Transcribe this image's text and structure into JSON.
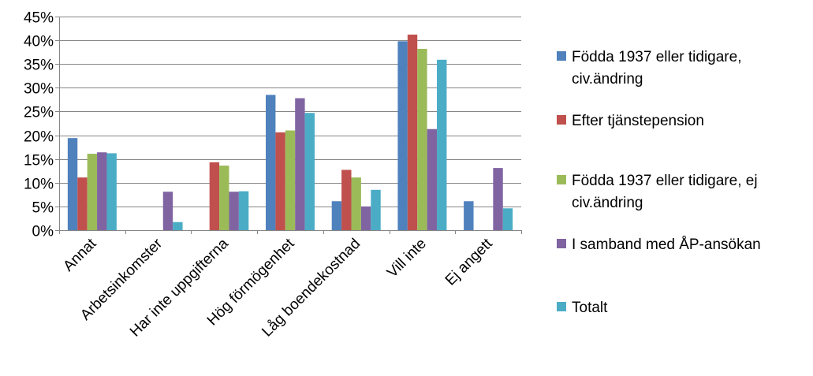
{
  "chart_data": {
    "type": "bar",
    "title": "",
    "xlabel": "",
    "ylabel": "",
    "ylim": [
      0,
      45
    ],
    "ytick_step": 5,
    "ytick_labels": [
      "0%",
      "5%",
      "10%",
      "15%",
      "20%",
      "25%",
      "30%",
      "35%",
      "40%",
      "45%"
    ],
    "grid": "horizontal",
    "legend_position": "right",
    "categories": [
      "Annat",
      "Arbetsinkomster",
      "Har inte uppgifterna",
      "Hög förmögenhet",
      "Låg boendekostnad",
      "Vill inte",
      "Ej angett"
    ],
    "series": [
      {
        "name": "Födda 1937 eller tidigare, civ.ändring",
        "legend_lines": [
          "Födda 1937 eller tidigare,",
          "civ.ändring"
        ],
        "color": "#4F81BD",
        "values": [
          19.4,
          0,
          0,
          28.5,
          6.1,
          39.8,
          6.1
        ]
      },
      {
        "name": "Efter tjänstepension",
        "legend_lines": [
          "Efter tjänstepension"
        ],
        "color": "#C0504D",
        "values": [
          11.1,
          0,
          14.3,
          20.6,
          12.7,
          41.2,
          0
        ]
      },
      {
        "name": "Födda 1937 eller tidigare, ej civ.ändring",
        "legend_lines": [
          "Födda 1937 eller tidigare, ej",
          "civ.ändring"
        ],
        "color": "#9BBB59",
        "values": [
          16.1,
          0,
          13.6,
          21.0,
          11.1,
          38.2,
          0
        ]
      },
      {
        "name": "I samband med ÅP-ansökan",
        "legend_lines": [
          "I samband med ÅP-ansökan"
        ],
        "color": "#8064A2",
        "values": [
          16.4,
          8.1,
          8.1,
          27.8,
          5.0,
          21.3,
          13.1
        ]
      },
      {
        "name": "Totalt",
        "legend_lines": [
          "Totalt"
        ],
        "color": "#4BACC6",
        "values": [
          16.2,
          1.7,
          8.2,
          24.7,
          8.5,
          35.9,
          4.6
        ]
      }
    ]
  }
}
